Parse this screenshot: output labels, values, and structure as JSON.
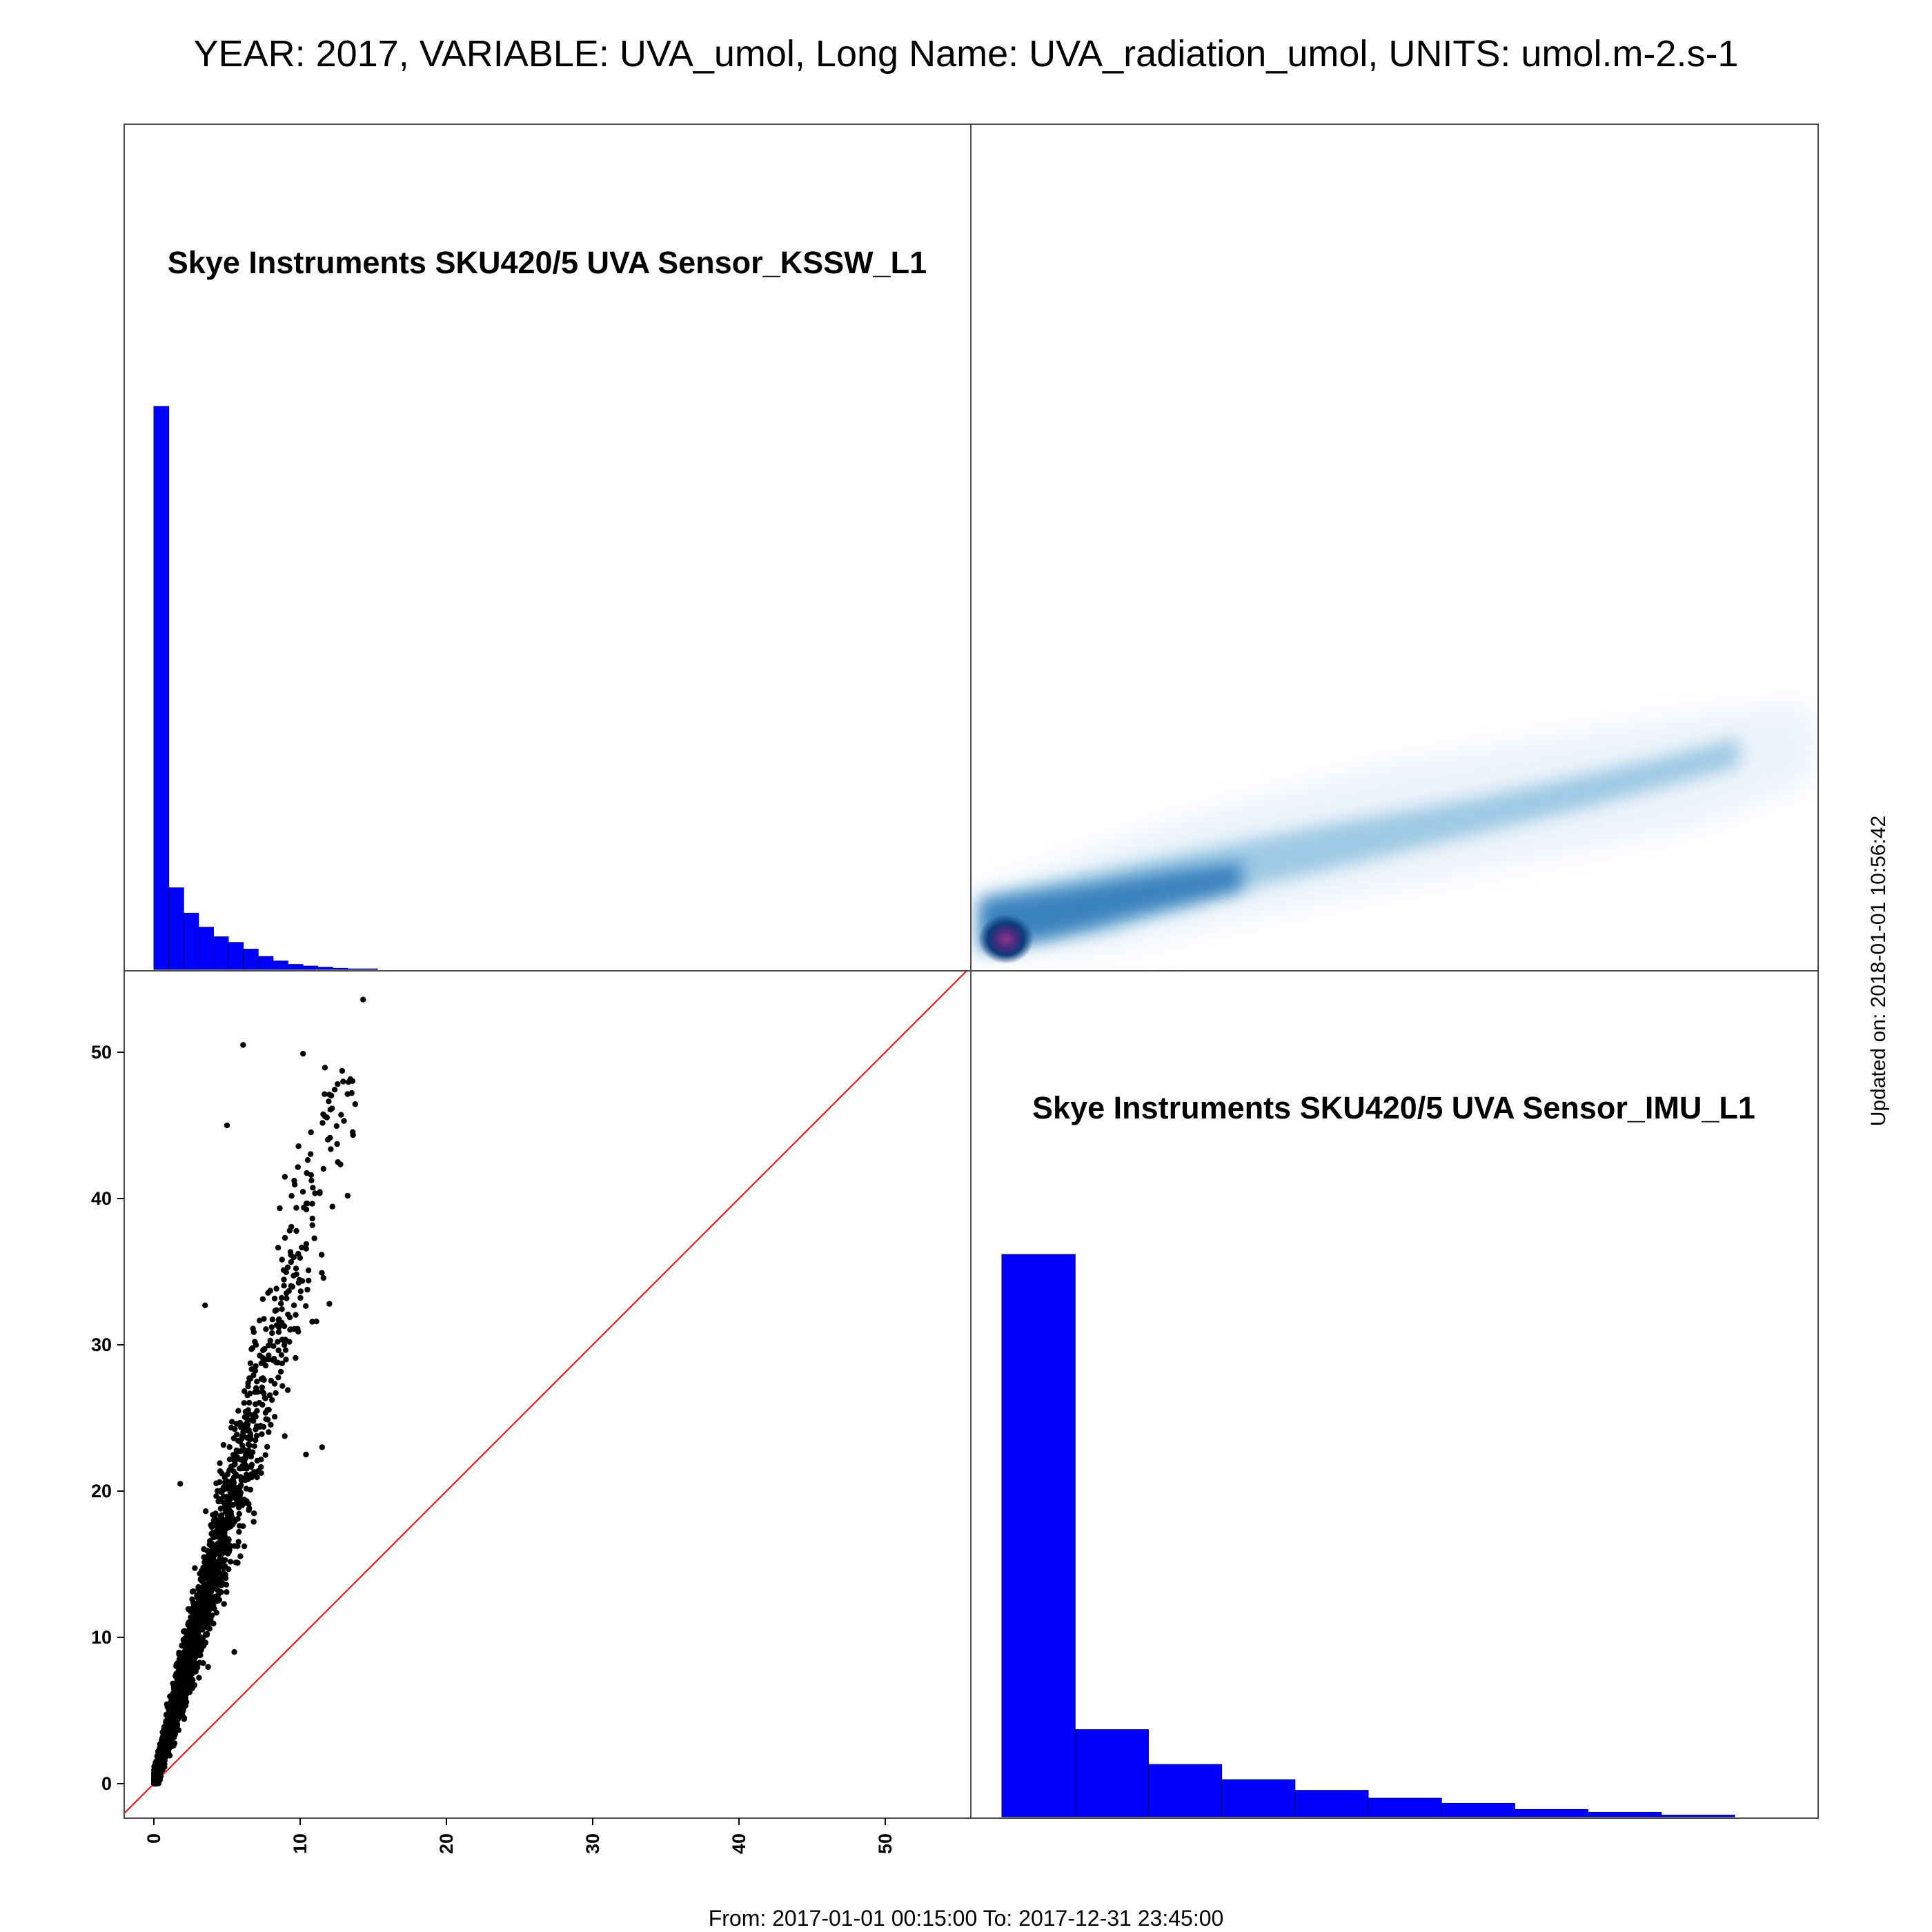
{
  "header": {
    "title": "YEAR: 2017, VARIABLE: UVA_umol, Long Name: UVA_radiation_umol, UNITS: umol.m-2.s-1"
  },
  "footer": {
    "range": "From: 2017-01-01 00:15:00 To: 2017-12-31 23:45:00",
    "updated": "Updated on: 2018-01-01 10:56:42"
  },
  "colors": {
    "bars": "#0000ff",
    "bar_edge": "#000080",
    "points": "#000000",
    "identity_line": "#ff0000",
    "density_core": "#7a3a8a",
    "density_mid": "#1f78b4",
    "density_low": "#c6dbef"
  },
  "chart_data": [
    {
      "type": "histogram",
      "panel": "top-left",
      "title": "Skye Instruments SKU420/5 UVA Sensor_KSSW_L1",
      "bin_edges": [
        0,
        1,
        2,
        3,
        4,
        5,
        6,
        7,
        8,
        9,
        10,
        11,
        12,
        13,
        14,
        15
      ],
      "relative_counts": [
        1.0,
        0.145,
        0.1,
        0.075,
        0.058,
        0.048,
        0.036,
        0.023,
        0.015,
        0.009,
        0.006,
        0.004,
        0.002,
        0.001,
        0.001
      ]
    },
    {
      "type": "heatmap",
      "panel": "top-right",
      "description_values": "2D density of KSSW_L1 (x) vs IMU_L1 (y)",
      "ridge": [
        [
          0,
          0
        ],
        [
          10,
          15
        ],
        [
          20,
          25
        ],
        [
          30,
          33
        ],
        [
          40,
          40
        ],
        [
          50,
          45
        ]
      ],
      "peak": [
        0,
        0
      ]
    },
    {
      "type": "scatter",
      "panel": "bottom-left",
      "xlim": [
        -2,
        56
      ],
      "ylim": [
        -2,
        56
      ],
      "xticks": [
        "0",
        "10",
        "20",
        "30",
        "40",
        "50"
      ],
      "yticks": [
        "0",
        "10",
        "20",
        "30",
        "40",
        "50"
      ],
      "trend_slope": 3.6,
      "x_max": 14.3,
      "y_max": 53.6,
      "outliers": [
        [
          14.3,
          53.6
        ],
        [
          6.1,
          50.5
        ],
        [
          10.2,
          49.9
        ],
        [
          3.5,
          32.7
        ],
        [
          5.5,
          9.0
        ],
        [
          10.4,
          22.5
        ],
        [
          11.5,
          23.0
        ],
        [
          1.8,
          20.5
        ],
        [
          5.0,
          45.0
        ],
        [
          12,
          32.8
        ]
      ],
      "identity_line": [
        [
          -2,
          -2
        ],
        [
          56,
          56
        ]
      ]
    },
    {
      "type": "histogram",
      "panel": "bottom-right",
      "title": "Skye Instruments SKU420/5 UVA Sensor_IMU_L1",
      "bin_edges": [
        0,
        5,
        10,
        15,
        20,
        25,
        30,
        35,
        40,
        45,
        50
      ],
      "relative_counts": [
        1.0,
        0.155,
        0.093,
        0.066,
        0.047,
        0.033,
        0.024,
        0.013,
        0.008,
        0.003
      ]
    }
  ]
}
